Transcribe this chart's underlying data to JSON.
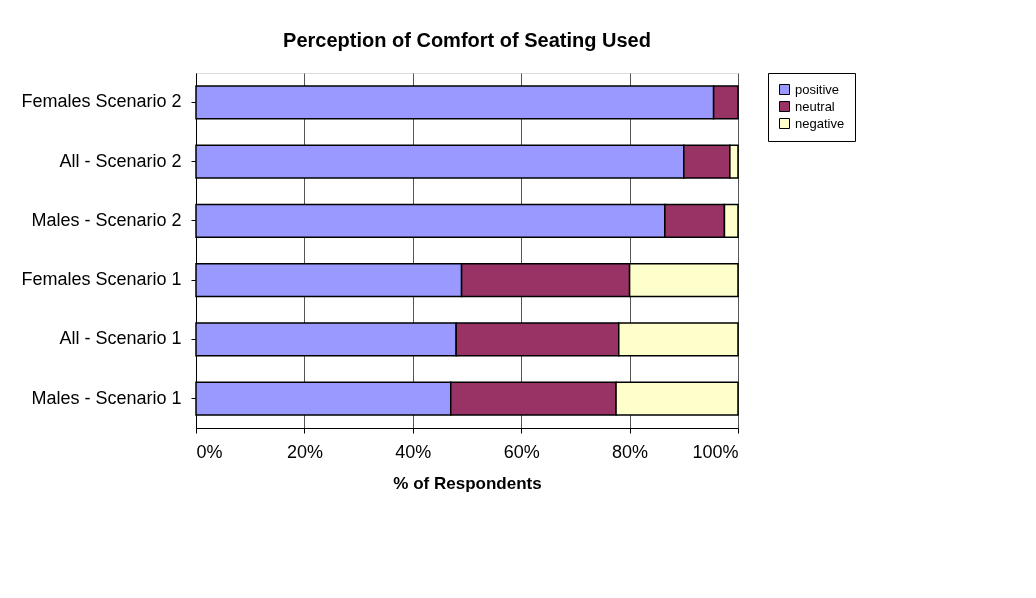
{
  "chart_data": {
    "type": "bar",
    "orientation": "horizontal",
    "stacked": true,
    "title": "Perception of Comfort of Seating Used",
    "xlabel": "% of Respondents",
    "categories": [
      "Females Scenario 2",
      "All - Scenario 2",
      "Males - Scenario 2",
      "Females Scenario 1",
      "All - Scenario 1",
      "Males - Scenario 1"
    ],
    "series": [
      {
        "name": "positive",
        "color": "#9999ff",
        "values": [
          95.5,
          90,
          86.5,
          49,
          48,
          47
        ]
      },
      {
        "name": "neutral",
        "color": "#993366",
        "values": [
          4.5,
          8.5,
          11,
          31,
          30,
          30.5
        ]
      },
      {
        "name": "negative",
        "color": "#ffffcc",
        "values": [
          null,
          1.5,
          2.5,
          20,
          22,
          22.5
        ]
      }
    ],
    "xlim": [
      0,
      100
    ],
    "xticks": [
      {
        "value": 0,
        "label": "0%"
      },
      {
        "value": 20,
        "label": "20%"
      },
      {
        "value": 40,
        "label": "40%"
      },
      {
        "value": 60,
        "label": "60%"
      },
      {
        "value": 80,
        "label": "80%"
      },
      {
        "value": 100,
        "label": "100%"
      }
    ],
    "grid": "x",
    "legend": "right"
  }
}
